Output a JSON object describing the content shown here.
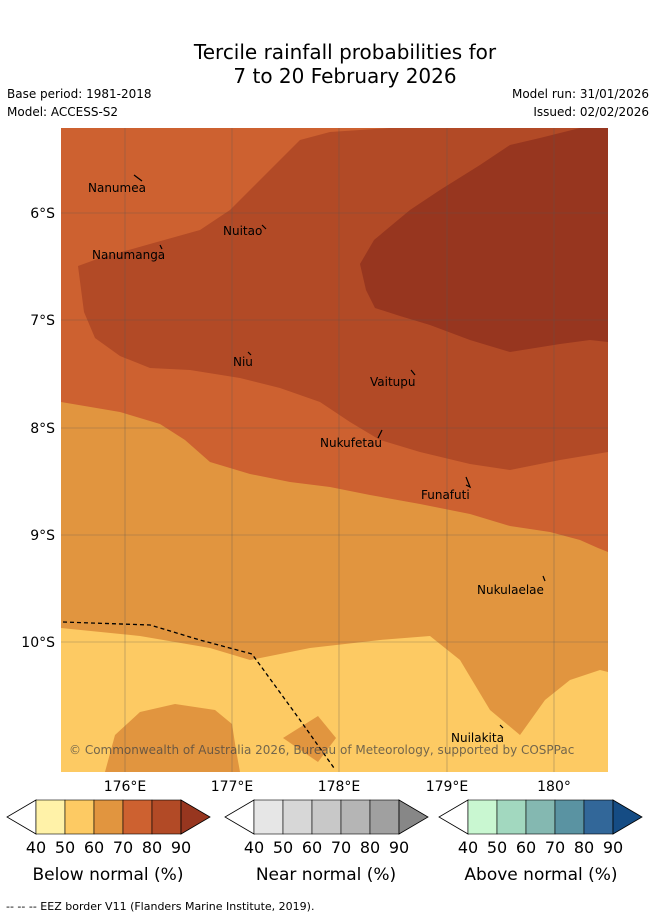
{
  "title_line1": "Tercile rainfall probabilities for",
  "title_line2": "7 to 20 February 2026",
  "base_period": "Base period: 1981-2018",
  "model": "Model: ACCESS-S2",
  "model_run": "Model run: 31/01/2026",
  "issued": "Issued: 02/02/2026",
  "copyright": "© Commonwealth of Australia 2026, Bureau of Meteorology, supported by COSPPac",
  "footer": "--  --  -- EEZ border V11 (Flanders Marine Institute, 2019).",
  "lat_labels": [
    "6°S",
    "7°S",
    "8°S",
    "9°S",
    "10°S"
  ],
  "lon_labels": [
    "176°E",
    "177°E",
    "178°E",
    "179°E",
    "180°"
  ],
  "islands": [
    "Nanumea",
    "Nuitao",
    "Nanumanga",
    "Niu",
    "Vaitupu",
    "Nukufetau",
    "Funafuti",
    "Nukulaelae",
    "Nuilakita"
  ],
  "legends": [
    {
      "title": "Below normal (%)",
      "ticks": [
        "40",
        "50",
        "60",
        "70",
        "80",
        "90"
      ],
      "colors": [
        "#fff2a8",
        "#fdca63",
        "#e1953f",
        "#cd6130",
        "#b24a26",
        "#97361f"
      ]
    },
    {
      "title": "Near normal (%)",
      "ticks": [
        "40",
        "50",
        "60",
        "70",
        "80",
        "90"
      ],
      "colors": [
        "#e6e6e6",
        "#d7d7d7",
        "#c8c8c8",
        "#b5b5b5",
        "#a0a0a0",
        "#878787"
      ]
    },
    {
      "title": "Above normal (%)",
      "ticks": [
        "40",
        "50",
        "60",
        "70",
        "80",
        "90"
      ],
      "colors": [
        "#c9f7d1",
        "#a2d8bf",
        "#84b8b1",
        "#5a93a2",
        "#326799",
        "#154c84"
      ]
    }
  ],
  "colors": {
    "band60": "#e1953f",
    "band50": "#fdca63",
    "band70": "#cd6130",
    "band80": "#b24a26",
    "band90": "#97361f"
  }
}
